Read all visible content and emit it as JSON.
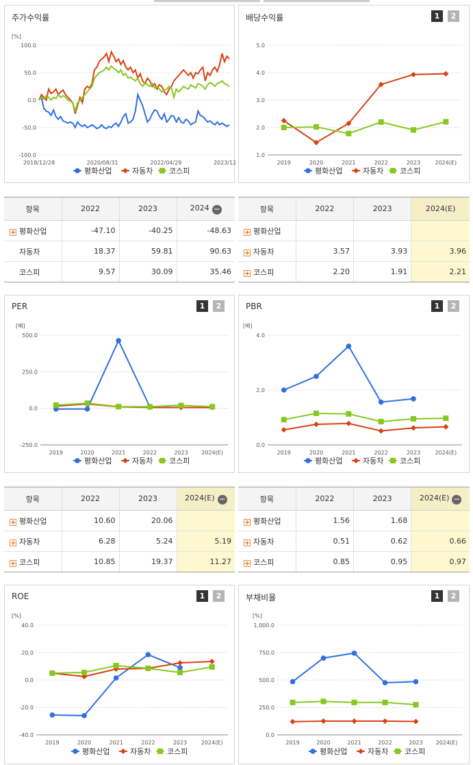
{
  "colors": {
    "s1": "#2f6fe0",
    "s2": "#d94010",
    "s3": "#86c820"
  },
  "legend": [
    "평화산업",
    "자동차",
    "코스피"
  ],
  "charts": [
    {
      "id": "stock",
      "title": "주가수익률",
      "unit": "[%]",
      "buttons": false,
      "chart_data": {
        "type": "line",
        "x_ticks": [
          "2018/12/28",
          "2020/08/31",
          "2022/04/29",
          "2023/12/28"
        ],
        "y_ticks": [
          "100.0",
          "50.0",
          "0.0",
          "-50.0",
          "-100.0"
        ],
        "ylim": [
          -100,
          100
        ],
        "series": [
          {
            "name": "평화산업",
            "values": [
              0,
              5,
              -15,
              -20,
              -22,
              -28,
              -18,
              -30,
              -35,
              -30,
              -38,
              -40,
              -42,
              -40,
              -42,
              -50,
              -40,
              -45,
              -48,
              -45,
              -50,
              -48,
              -45,
              -48,
              -52,
              -50,
              -45,
              -50,
              -52,
              -48,
              -50,
              -45,
              -42,
              -48,
              -40,
              -30,
              -25,
              -42,
              -40,
              -35,
              -20,
              10,
              0,
              -10,
              -25,
              -40,
              -35,
              -25,
              -18,
              -20,
              -30,
              -35,
              -25,
              -40,
              -35,
              -28,
              -30,
              -40,
              -32,
              -40,
              -42,
              -35,
              -38,
              -45,
              -42,
              -40,
              -20,
              -28,
              -30,
              -35,
              -40,
              -38,
              -42,
              -45,
              -40,
              -45,
              -42,
              -45,
              -48,
              -45
            ]
          },
          {
            "name": "자동차",
            "values": [
              0,
              10,
              5,
              0,
              20,
              12,
              15,
              20,
              10,
              15,
              18,
              10,
              5,
              0,
              -5,
              -25,
              -10,
              5,
              -5,
              20,
              25,
              22,
              30,
              55,
              60,
              70,
              75,
              78,
              85,
              70,
              88,
              80,
              70,
              75,
              65,
              72,
              60,
              55,
              60,
              50,
              55,
              40,
              48,
              35,
              30,
              40,
              35,
              25,
              30,
              20,
              28,
              25,
              15,
              10,
              20,
              25,
              35,
              40,
              45,
              50,
              55,
              50,
              45,
              50,
              40,
              50,
              48,
              55,
              60,
              35,
              50,
              45,
              55,
              60,
              52,
              65,
              85,
              70,
              80,
              75
            ]
          },
          {
            "name": "코스피",
            "values": [
              0,
              5,
              2,
              8,
              5,
              0,
              5,
              3,
              10,
              5,
              8,
              5,
              0,
              -2,
              -5,
              -20,
              -5,
              0,
              5,
              10,
              15,
              20,
              25,
              40,
              45,
              50,
              52,
              55,
              60,
              55,
              62,
              58,
              55,
              50,
              55,
              45,
              48,
              40,
              42,
              38,
              35,
              40,
              30,
              25,
              32,
              28,
              25,
              30,
              22,
              25,
              20,
              15,
              18,
              20,
              25,
              22,
              5,
              20,
              15,
              20,
              25,
              22,
              20,
              28,
              25,
              22,
              30,
              28,
              25,
              20,
              28,
              32,
              30,
              25,
              30,
              32,
              35,
              30,
              28,
              25
            ]
          }
        ]
      }
    },
    {
      "id": "dividend",
      "title": "배당수익률",
      "unit": "",
      "buttons": true,
      "chart_data": {
        "type": "line",
        "categories": [
          "2019",
          "2020",
          "2021",
          "2022",
          "2023",
          "2024(E)"
        ],
        "y_ticks": [
          "5.0",
          "4.0",
          "3.0",
          "2.0",
          "1.0"
        ],
        "ylim": [
          1,
          5
        ],
        "series": [
          {
            "name": "평화산업",
            "values": [
              null,
              null,
              null,
              null,
              null,
              null
            ]
          },
          {
            "name": "자동차",
            "values": [
              2.25,
              1.45,
              2.15,
              3.57,
              3.93,
              3.96
            ]
          },
          {
            "name": "코스피",
            "values": [
              2.0,
              2.02,
              1.78,
              2.2,
              1.91,
              2.21
            ]
          }
        ]
      }
    },
    {
      "id": "per",
      "title": "PER",
      "unit": "[배]",
      "buttons": true,
      "chart_data": {
        "type": "line",
        "categories": [
          "2019",
          "2020",
          "2021",
          "2022",
          "2023",
          "2024(E)"
        ],
        "y_ticks": [
          "500.0",
          "250.0",
          "0.0",
          "-250.0"
        ],
        "ylim": [
          -250,
          500
        ],
        "series": [
          {
            "name": "평화산업",
            "values": [
              -5,
              -5,
              463,
              10.6,
              20.06,
              null
            ]
          },
          {
            "name": "자동차",
            "values": [
              15,
              30,
              10,
              6.28,
              5.24,
              5.19
            ]
          },
          {
            "name": "코스피",
            "values": [
              22,
              35,
              12,
              10.85,
              19.37,
              11.27
            ]
          }
        ]
      }
    },
    {
      "id": "pbr",
      "title": "PBR",
      "unit": "[배]",
      "buttons": true,
      "chart_data": {
        "type": "line",
        "categories": [
          "2019",
          "2020",
          "2021",
          "2022",
          "2023",
          "2024(E)"
        ],
        "y_ticks": [
          "4.0",
          "2.0",
          "0.0"
        ],
        "ylim": [
          0,
          4
        ],
        "series": [
          {
            "name": "평화산업",
            "values": [
              2.0,
              2.5,
              3.6,
              1.56,
              1.68,
              null
            ]
          },
          {
            "name": "자동차",
            "values": [
              0.55,
              0.75,
              0.78,
              0.51,
              0.62,
              0.66
            ]
          },
          {
            "name": "코스피",
            "values": [
              0.92,
              1.15,
              1.13,
              0.85,
              0.95,
              0.97
            ]
          }
        ]
      }
    },
    {
      "id": "roe",
      "title": "ROE",
      "unit": "[%]",
      "buttons": true,
      "chart_data": {
        "type": "line",
        "categories": [
          "2019",
          "2020",
          "2021",
          "2022",
          "2023",
          "2024(E)"
        ],
        "y_ticks": [
          "40.0",
          "20.0",
          "0.0",
          "-20.0",
          "-40.0"
        ],
        "ylim": [
          -40,
          40
        ],
        "series": [
          {
            "name": "평화산업",
            "values": [
              -25.5,
              -26,
              1.5,
              18.5,
              9,
              null
            ]
          },
          {
            "name": "자동차",
            "values": [
              5,
              2.5,
              8,
              8.5,
              12.5,
              13.5
            ]
          },
          {
            "name": "코스피",
            "values": [
              5,
              5.5,
              10.5,
              8.5,
              5.5,
              9.5
            ]
          }
        ]
      }
    },
    {
      "id": "debt",
      "title": "부채비율",
      "unit": "[%]",
      "buttons": true,
      "chart_data": {
        "type": "line",
        "categories": [
          "2019",
          "2020",
          "2021",
          "2022",
          "2023",
          "2024(E)"
        ],
        "y_ticks": [
          "1,000.0",
          "750.0",
          "500.0",
          "250.0",
          "0.0"
        ],
        "ylim": [
          0,
          1000
        ],
        "series": [
          {
            "name": "평화산업",
            "values": [
              485,
              700,
              745,
              475,
              485,
              null
            ]
          },
          {
            "name": "자동차",
            "values": [
              120,
              125,
              125,
              125,
              122,
              null
            ]
          },
          {
            "name": "코스피",
            "values": [
              295,
              305,
              295,
              295,
              275,
              null
            ]
          }
        ]
      }
    }
  ],
  "tables": [
    {
      "id": "stock-table",
      "headers": [
        "항목",
        "2022",
        "2023",
        "2024"
      ],
      "minus_on_last": true,
      "highlight_last": false,
      "rows": [
        {
          "label": "평화산업",
          "plus": true,
          "cells": [
            "-47.10",
            "-40.25",
            "-48.63"
          ]
        },
        {
          "label": "자동차",
          "plus": false,
          "cells": [
            "18.37",
            "59.81",
            "90.63"
          ]
        },
        {
          "label": "코스피",
          "plus": false,
          "cells": [
            "9.57",
            "30.09",
            "35.46"
          ]
        }
      ]
    },
    {
      "id": "dividend-table",
      "headers": [
        "항목",
        "2022",
        "2023",
        "2024(E)"
      ],
      "minus_on_last": false,
      "highlight_last": true,
      "rows": [
        {
          "label": "평화산업",
          "plus": true,
          "cells": [
            "",
            "",
            ""
          ]
        },
        {
          "label": "자동차",
          "plus": true,
          "cells": [
            "3.57",
            "3.93",
            "3.96"
          ]
        },
        {
          "label": "코스피",
          "plus": true,
          "cells": [
            "2.20",
            "1.91",
            "2.21"
          ]
        }
      ]
    },
    {
      "id": "per-table",
      "headers": [
        "항목",
        "2022",
        "2023",
        "2024(E)"
      ],
      "minus_on_last": true,
      "highlight_last": true,
      "rows": [
        {
          "label": "평화산업",
          "plus": true,
          "cells": [
            "10.60",
            "20.06",
            ""
          ]
        },
        {
          "label": "자동차",
          "plus": true,
          "cells": [
            "6.28",
            "5.24",
            "5.19"
          ]
        },
        {
          "label": "코스피",
          "plus": true,
          "cells": [
            "10.85",
            "19.37",
            "11.27"
          ]
        }
      ]
    },
    {
      "id": "pbr-table",
      "headers": [
        "항목",
        "2022",
        "2023",
        "2024(E)"
      ],
      "minus_on_last": true,
      "highlight_last": true,
      "rows": [
        {
          "label": "평화산업",
          "plus": true,
          "cells": [
            "1.56",
            "1.68",
            ""
          ]
        },
        {
          "label": "자동차",
          "plus": true,
          "cells": [
            "0.51",
            "0.62",
            "0.66"
          ]
        },
        {
          "label": "코스피",
          "plus": true,
          "cells": [
            "0.85",
            "0.95",
            "0.97"
          ]
        }
      ]
    }
  ],
  "buttons": {
    "one": "1",
    "two": "2"
  }
}
